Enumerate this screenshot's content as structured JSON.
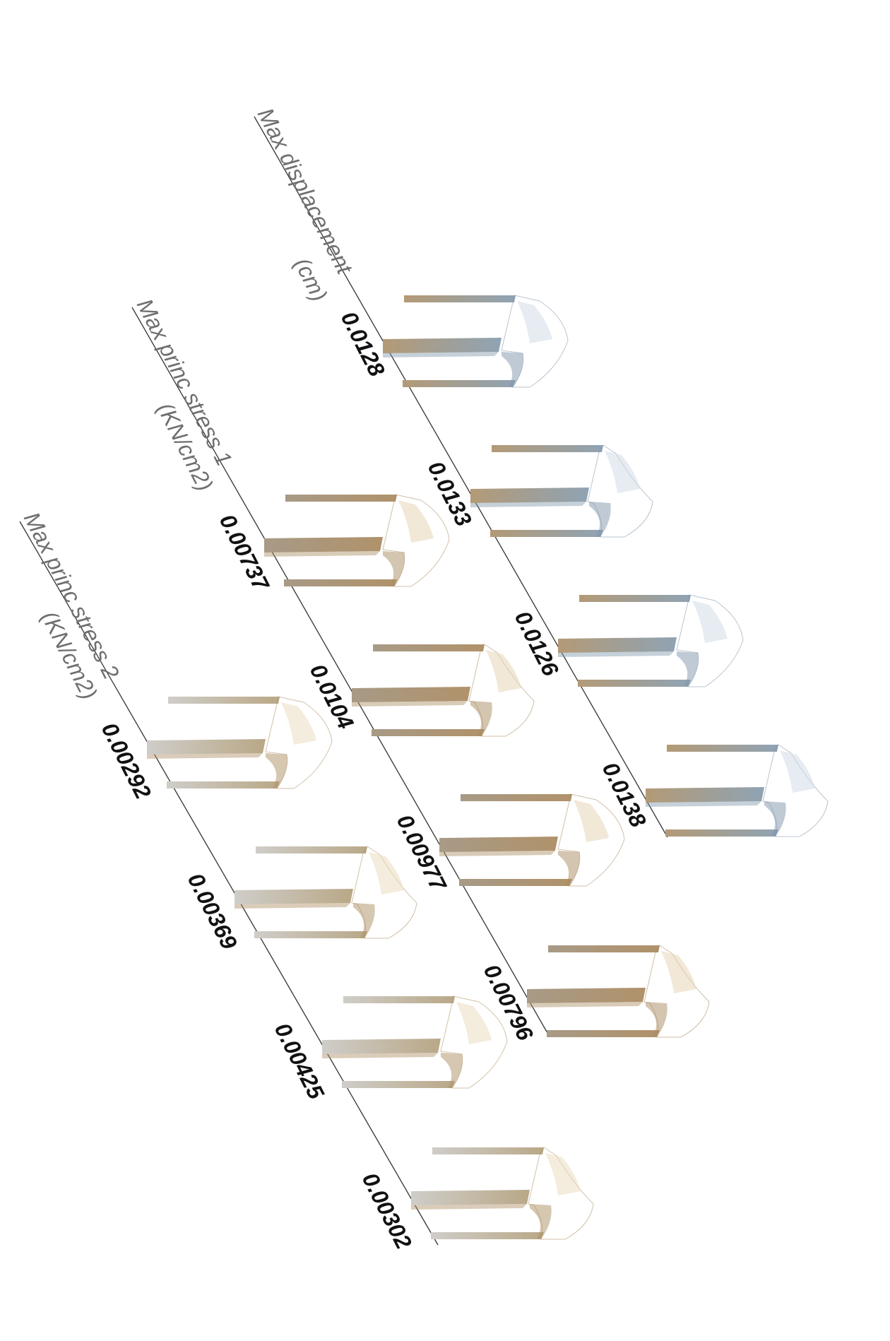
{
  "rows": [
    {
      "header": "Max displacement",
      "unit": "(cm)",
      "values": [
        "0.0128",
        "0.0133",
        "0.0126",
        "0.0138"
      ],
      "palette": {
        "leg_start": "#b39a76",
        "leg_end": "#8fa3b4",
        "body": "#a8bccf",
        "body_dark": "#7f96ab",
        "light": "#d2dde6"
      }
    },
    {
      "header": "Max princ stress 1",
      "unit": "(KN/cm2)",
      "values": [
        "0.00737",
        "0.0104",
        "0.00977",
        "0.00796"
      ],
      "palette": {
        "leg_start": "#a89a86",
        "leg_end": "#b0926a",
        "body": "#d2b890",
        "body_dark": "#a98b62",
        "light": "#e6d5b6"
      }
    },
    {
      "header": "Max princ stress 2",
      "unit": "(KN/cm2)",
      "values": [
        "0.00292",
        "0.00369",
        "0.00425",
        "0.00302"
      ],
      "palette": {
        "leg_start": "#cfcdc9",
        "leg_end": "#b9a887",
        "body": "#d7bd92",
        "body_dark": "#ad8f63",
        "light": "#ebdcc0"
      }
    }
  ]
}
